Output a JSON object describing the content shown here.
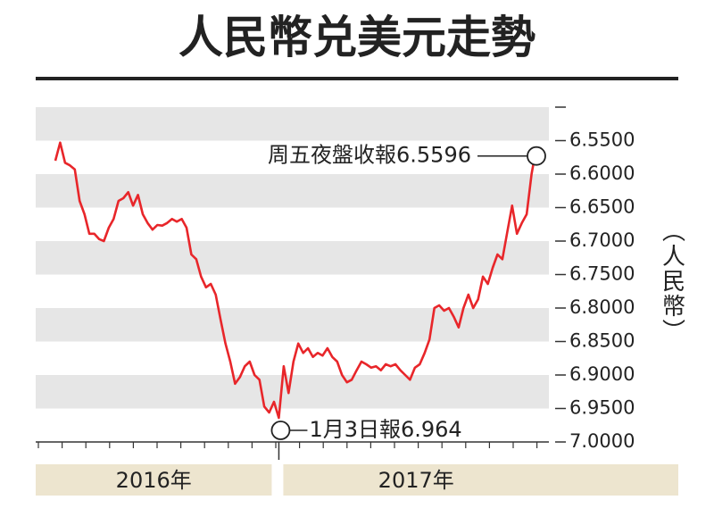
{
  "chart_data": {
    "type": "line",
    "title": "人民幣兑美元走勢",
    "ylabel": "（人民幣）",
    "inverted": true,
    "ylim": [
      6.5,
      7.0
    ],
    "yticks": [
      {
        "value": 6.55,
        "label": "6.5500"
      },
      {
        "value": 6.6,
        "label": "6.6000"
      },
      {
        "value": 6.65,
        "label": "6.6500"
      },
      {
        "value": 6.7,
        "label": "6.7000"
      },
      {
        "value": 6.75,
        "label": "6.7500"
      },
      {
        "value": 6.8,
        "label": "6.8000"
      },
      {
        "value": 6.85,
        "label": "6.8500"
      },
      {
        "value": 6.9,
        "label": "6.9000"
      },
      {
        "value": 6.95,
        "label": "6.9500"
      },
      {
        "value": 7.0,
        "label": "7.0000"
      }
    ],
    "periods": [
      "2016年",
      "2017年"
    ],
    "series": [
      {
        "name": "人民幣兑美元",
        "color": "#e8262a",
        "values": [
          6.58,
          6.553,
          6.583,
          6.587,
          6.593,
          6.64,
          6.66,
          6.689,
          6.689,
          6.697,
          6.7,
          6.68,
          6.667,
          6.64,
          6.636,
          6.627,
          6.647,
          6.631,
          6.66,
          6.673,
          6.683,
          6.676,
          6.677,
          6.673,
          6.667,
          6.671,
          6.667,
          6.68,
          6.72,
          6.727,
          6.753,
          6.769,
          6.764,
          6.78,
          6.817,
          6.853,
          6.88,
          6.913,
          6.903,
          6.887,
          6.88,
          6.9,
          6.907,
          6.947,
          6.956,
          6.94,
          6.964,
          6.887,
          6.927,
          6.88,
          6.853,
          6.867,
          6.86,
          6.873,
          6.867,
          6.871,
          6.86,
          6.873,
          6.88,
          6.9,
          6.911,
          6.907,
          6.893,
          6.88,
          6.884,
          6.889,
          6.887,
          6.893,
          6.884,
          6.887,
          6.884,
          6.893,
          6.9,
          6.907,
          6.889,
          6.884,
          6.867,
          6.847,
          6.8,
          6.796,
          6.804,
          6.8,
          6.813,
          6.829,
          6.8,
          6.78,
          6.8,
          6.787,
          6.753,
          6.764,
          6.74,
          6.72,
          6.727,
          6.687,
          6.647,
          6.689,
          6.673,
          6.66,
          6.6,
          6.5596
        ]
      }
    ],
    "annotations": [
      {
        "text": "周五夜盤收報6.5596",
        "value": 6.5596
      },
      {
        "text": "1月3日報6.964",
        "value": 6.964
      }
    ]
  }
}
